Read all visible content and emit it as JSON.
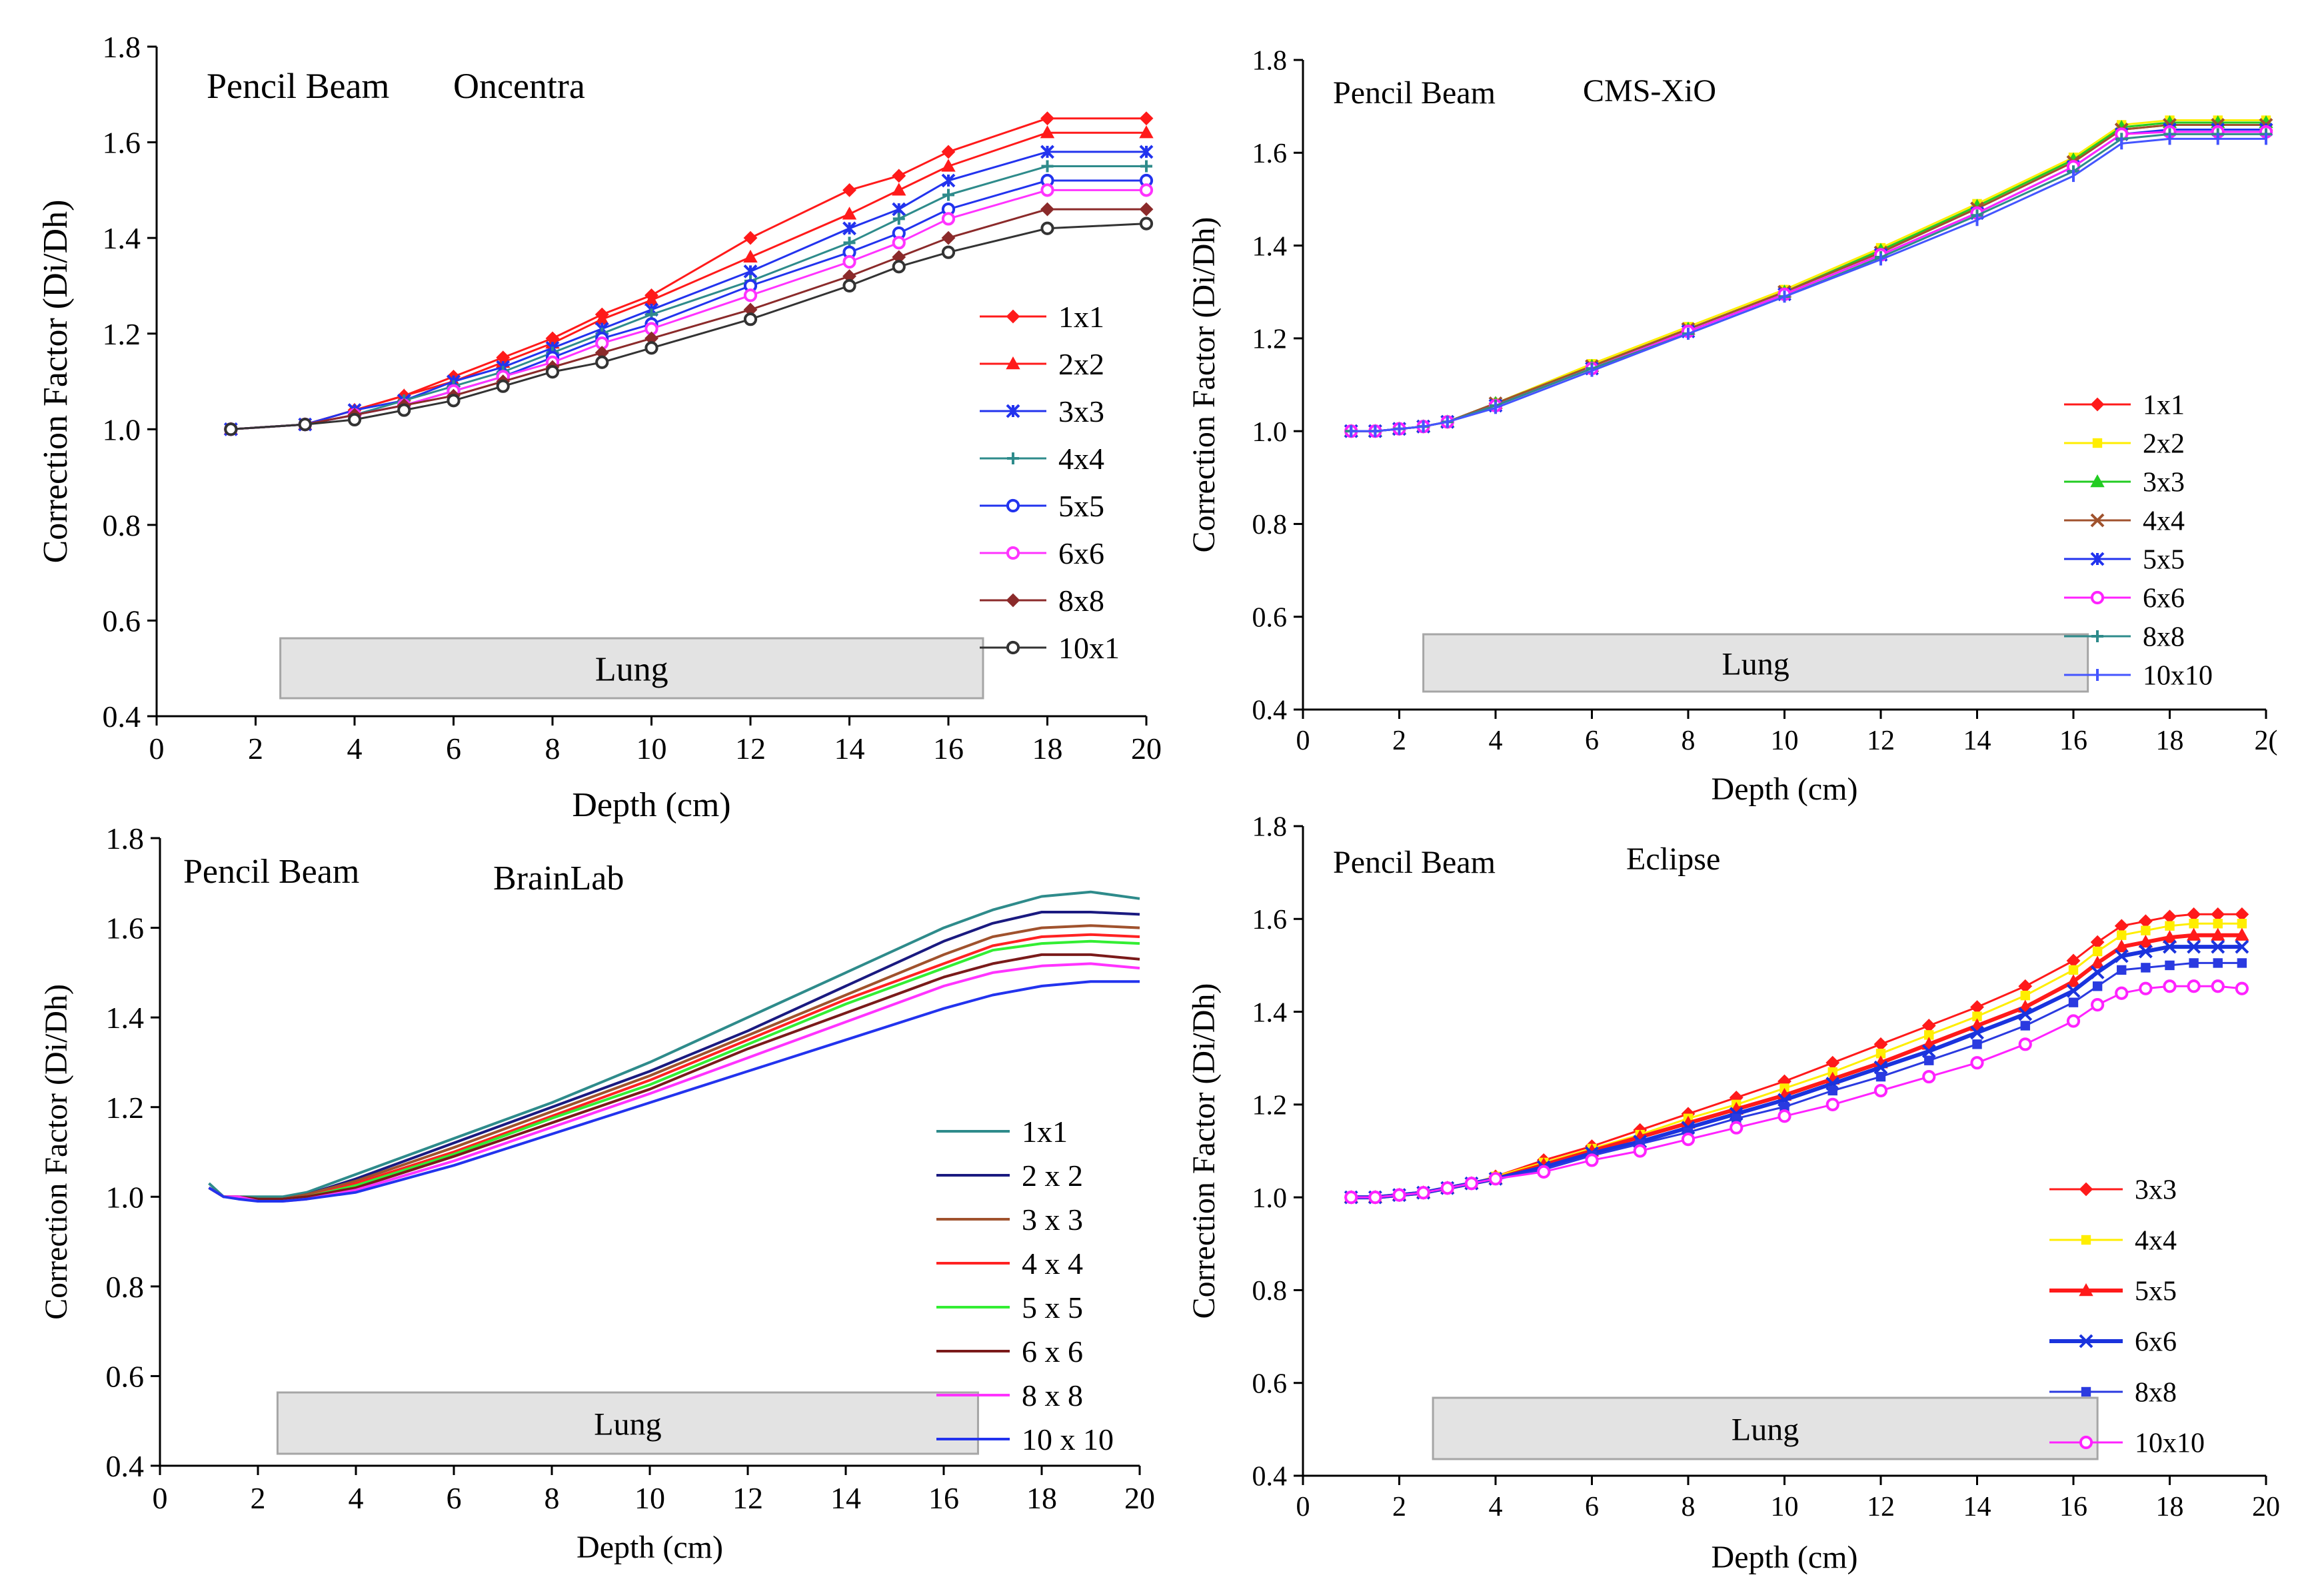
{
  "chart_data": [
    {
      "type": "line",
      "title": "Pencil Beam",
      "subtitle": "Oncentra",
      "xlabel": "Depth (cm)",
      "ylabel": "Correction Factor (Di/Dh)",
      "xlim": [
        0,
        20
      ],
      "ylim": [
        0.4,
        1.8
      ],
      "xticks": [
        "0",
        "2",
        "4",
        "6",
        "8",
        "10",
        "12",
        "14",
        "16",
        "18",
        "20"
      ],
      "yticks": [
        "0.4",
        "0.6",
        "0.8",
        "1.0",
        "1.2",
        "1.4",
        "1.6",
        "1.8"
      ],
      "region_label": "Lung",
      "region": [
        2.5,
        16.7
      ],
      "legend_position": "right",
      "x": [
        1.5,
        3,
        4,
        5,
        6,
        7,
        8,
        9,
        10,
        12,
        14,
        15,
        16,
        18,
        20
      ],
      "series": [
        {
          "name": "1x1",
          "color": "#ff1a1a",
          "marker": "diamond",
          "values": [
            1.0,
            1.01,
            1.04,
            1.07,
            1.11,
            1.15,
            1.19,
            1.24,
            1.28,
            1.4,
            1.5,
            1.53,
            1.58,
            1.65,
            1.65
          ]
        },
        {
          "name": "2x2",
          "color": "#ff1a1a",
          "marker": "triangle",
          "values": [
            1.0,
            1.01,
            1.04,
            1.07,
            1.1,
            1.14,
            1.18,
            1.23,
            1.27,
            1.36,
            1.45,
            1.5,
            1.55,
            1.62,
            1.62
          ]
        },
        {
          "name": "3x3",
          "color": "#2233ee",
          "marker": "star",
          "values": [
            1.0,
            1.01,
            1.04,
            1.06,
            1.1,
            1.13,
            1.17,
            1.21,
            1.25,
            1.33,
            1.42,
            1.46,
            1.52,
            1.58,
            1.58
          ]
        },
        {
          "name": "4x4",
          "color": "#2e8b8b",
          "marker": "plus",
          "values": [
            1.0,
            1.01,
            1.03,
            1.06,
            1.09,
            1.12,
            1.16,
            1.2,
            1.24,
            1.31,
            1.39,
            1.44,
            1.49,
            1.55,
            1.55
          ]
        },
        {
          "name": "5x5",
          "color": "#2233ee",
          "marker": "circle",
          "values": [
            1.0,
            1.01,
            1.03,
            1.05,
            1.08,
            1.11,
            1.15,
            1.19,
            1.22,
            1.3,
            1.37,
            1.41,
            1.46,
            1.52,
            1.52
          ]
        },
        {
          "name": "6x6",
          "color": "#ff33ff",
          "marker": "circle",
          "values": [
            1.0,
            1.01,
            1.03,
            1.05,
            1.08,
            1.11,
            1.14,
            1.18,
            1.21,
            1.28,
            1.35,
            1.39,
            1.44,
            1.5,
            1.5
          ]
        },
        {
          "name": "8x8",
          "color": "#8b2a2a",
          "marker": "diamond",
          "values": [
            1.0,
            1.01,
            1.03,
            1.05,
            1.07,
            1.1,
            1.13,
            1.16,
            1.19,
            1.25,
            1.32,
            1.36,
            1.4,
            1.46,
            1.46
          ]
        },
        {
          "name": "10x1",
          "color": "#333333",
          "marker": "circle",
          "values": [
            1.0,
            1.01,
            1.02,
            1.04,
            1.06,
            1.09,
            1.12,
            1.14,
            1.17,
            1.23,
            1.3,
            1.34,
            1.37,
            1.42,
            1.43
          ]
        }
      ]
    },
    {
      "type": "line",
      "title": "Pencil Beam",
      "subtitle": "CMS-XiO",
      "xlabel": "Depth (cm)",
      "ylabel": "Correction Factor (Di/Dh)",
      "xlim": [
        0,
        20
      ],
      "ylim": [
        0.4,
        1.8
      ],
      "xticks": [
        "0",
        "2",
        "4",
        "6",
        "8",
        "10",
        "12",
        "14",
        "16",
        "18",
        "2("
      ],
      "yticks": [
        "0.4",
        "0.6",
        "0.8",
        "1.0",
        "1.2",
        "1.4",
        "1.6",
        "1.8"
      ],
      "region_label": "Lung",
      "region": [
        2.5,
        16.3
      ],
      "legend_position": "right",
      "x": [
        1,
        1.5,
        2,
        2.5,
        3,
        4,
        6,
        8,
        10,
        12,
        14,
        16,
        17,
        18,
        19,
        20
      ],
      "series": [
        {
          "name": "1x1",
          "color": "#ff1a1a",
          "marker": "diamond",
          "values": [
            1.0,
            1.0,
            1.005,
            1.01,
            1.02,
            1.06,
            1.14,
            1.22,
            1.3,
            1.39,
            1.48,
            1.58,
            1.65,
            1.66,
            1.66,
            1.66
          ]
        },
        {
          "name": "2x2",
          "color": "#ffee00",
          "marker": "square",
          "values": [
            1.0,
            1.0,
            1.005,
            1.01,
            1.02,
            1.06,
            1.145,
            1.225,
            1.305,
            1.395,
            1.49,
            1.59,
            1.66,
            1.67,
            1.67,
            1.67
          ]
        },
        {
          "name": "3x3",
          "color": "#22cc22",
          "marker": "triangle",
          "values": [
            1.0,
            1.0,
            1.005,
            1.01,
            1.02,
            1.06,
            1.14,
            1.22,
            1.3,
            1.39,
            1.485,
            1.585,
            1.655,
            1.665,
            1.665,
            1.665
          ]
        },
        {
          "name": "4x4",
          "color": "#a0522d",
          "marker": "x",
          "values": [
            1.0,
            1.0,
            1.005,
            1.01,
            1.02,
            1.06,
            1.14,
            1.22,
            1.3,
            1.385,
            1.48,
            1.58,
            1.65,
            1.66,
            1.66,
            1.66
          ]
        },
        {
          "name": "5x5",
          "color": "#2233ee",
          "marker": "star",
          "values": [
            1.0,
            1.0,
            1.005,
            1.01,
            1.02,
            1.055,
            1.135,
            1.215,
            1.295,
            1.38,
            1.47,
            1.57,
            1.64,
            1.65,
            1.65,
            1.65
          ]
        },
        {
          "name": "6x6",
          "color": "#ff22ff",
          "marker": "circle",
          "values": [
            1.0,
            1.0,
            1.005,
            1.01,
            1.02,
            1.055,
            1.135,
            1.215,
            1.295,
            1.38,
            1.47,
            1.57,
            1.64,
            1.645,
            1.645,
            1.645
          ]
        },
        {
          "name": "8x8",
          "color": "#2e8b8b",
          "marker": "plus",
          "values": [
            1.0,
            1.0,
            1.005,
            1.01,
            1.02,
            1.055,
            1.135,
            1.21,
            1.29,
            1.375,
            1.465,
            1.56,
            1.63,
            1.64,
            1.64,
            1.64
          ]
        },
        {
          "name": "10x10",
          "color": "#4455ff",
          "marker": "bar",
          "values": [
            1.0,
            1.0,
            1.005,
            1.01,
            1.02,
            1.05,
            1.13,
            1.21,
            1.29,
            1.37,
            1.455,
            1.55,
            1.62,
            1.63,
            1.63,
            1.63
          ]
        }
      ]
    },
    {
      "type": "line",
      "title": "Pencil Beam",
      "subtitle": "BrainLab",
      "xlabel": "Depth (cm)",
      "ylabel": "Correction Factor (Di/Dh)",
      "xlim": [
        0,
        20
      ],
      "ylim": [
        0.4,
        1.8
      ],
      "xticks": [
        "0",
        "2",
        "4",
        "6",
        "8",
        "10",
        "12",
        "14",
        "16",
        "18",
        "20"
      ],
      "yticks": [
        "0.4",
        "0.6",
        "0.8",
        "1.0",
        "1.2",
        "1.4",
        "1.6",
        "1.8"
      ],
      "region_label": "Lung",
      "region": [
        2.4,
        16.7
      ],
      "legend_position": "right",
      "x": [
        1,
        1.3,
        1.6,
        2,
        2.5,
        3,
        4,
        6,
        8,
        10,
        12,
        14,
        16,
        17,
        18,
        19,
        20
      ],
      "series": [
        {
          "name": "1x1",
          "color": "#2e8b8b",
          "marker": "none",
          "values": [
            1.03,
            1.0,
            1.0,
            1.0,
            1.0,
            1.01,
            1.05,
            1.13,
            1.21,
            1.3,
            1.4,
            1.5,
            1.6,
            1.64,
            1.67,
            1.68,
            1.665
          ]
        },
        {
          "name": "2 x 2",
          "color": "#1a1a80",
          "marker": "none",
          "values": [
            1.02,
            1.0,
            1.0,
            0.995,
            0.995,
            1.005,
            1.04,
            1.12,
            1.2,
            1.28,
            1.37,
            1.47,
            1.57,
            1.61,
            1.635,
            1.635,
            1.63
          ]
        },
        {
          "name": "3 x 3",
          "color": "#a0522d",
          "marker": "none",
          "values": [
            1.02,
            1.0,
            1.0,
            0.995,
            0.995,
            1.005,
            1.035,
            1.11,
            1.19,
            1.27,
            1.36,
            1.45,
            1.54,
            1.58,
            1.6,
            1.605,
            1.6
          ]
        },
        {
          "name": "4 x 4",
          "color": "#ff2222",
          "marker": "none",
          "values": [
            1.02,
            1.0,
            1.0,
            0.995,
            0.995,
            1.0,
            1.03,
            1.1,
            1.18,
            1.26,
            1.35,
            1.44,
            1.52,
            1.56,
            1.58,
            1.585,
            1.58
          ]
        },
        {
          "name": "5 x 5",
          "color": "#33ee33",
          "marker": "none",
          "values": [
            1.02,
            1.0,
            1.0,
            0.995,
            0.995,
            1.0,
            1.025,
            1.095,
            1.175,
            1.25,
            1.34,
            1.43,
            1.51,
            1.55,
            1.565,
            1.57,
            1.565
          ]
        },
        {
          "name": "6 x 6",
          "color": "#7a1a1a",
          "marker": "none",
          "values": [
            1.02,
            1.0,
            1.0,
            0.995,
            0.995,
            1.0,
            1.02,
            1.09,
            1.165,
            1.24,
            1.33,
            1.41,
            1.49,
            1.52,
            1.54,
            1.54,
            1.53
          ]
        },
        {
          "name": "8 x 8",
          "color": "#ff33ff",
          "marker": "none",
          "values": [
            1.02,
            1.0,
            1.0,
            0.99,
            0.99,
            0.995,
            1.015,
            1.08,
            1.155,
            1.23,
            1.31,
            1.39,
            1.47,
            1.5,
            1.515,
            1.52,
            1.51
          ]
        },
        {
          "name": "10 x 10",
          "color": "#2233ee",
          "marker": "none",
          "values": [
            1.02,
            1.0,
            0.995,
            0.99,
            0.99,
            0.995,
            1.01,
            1.07,
            1.14,
            1.21,
            1.28,
            1.35,
            1.42,
            1.45,
            1.47,
            1.48,
            1.48
          ]
        }
      ]
    },
    {
      "type": "line",
      "title": "Pencil Beam",
      "subtitle": "Eclipse",
      "xlabel": "Depth (cm)",
      "ylabel": "Correction Factor (Di/Dh)",
      "xlim": [
        0,
        20
      ],
      "ylim": [
        0.4,
        1.8
      ],
      "xticks": [
        "0",
        "2",
        "4",
        "6",
        "8",
        "10",
        "12",
        "14",
        "16",
        "18",
        "20"
      ],
      "yticks": [
        "0.4",
        "0.6",
        "0.8",
        "1.0",
        "1.2",
        "1.4",
        "1.6",
        "1.8"
      ],
      "region_label": "Lung",
      "region": [
        2.7,
        16.5
      ],
      "legend_position": "right",
      "x": [
        1,
        1.5,
        2,
        2.5,
        3,
        3.5,
        4,
        5,
        6,
        7,
        8,
        9,
        10,
        11,
        12,
        13,
        14,
        15,
        16,
        16.5,
        17,
        17.5,
        18,
        18.5,
        19,
        19.5
      ],
      "series": [
        {
          "name": "3x3",
          "color": "#ff1a1a",
          "marker": "diamond",
          "lw": 3,
          "values": [
            1.0,
            1.0,
            1.005,
            1.01,
            1.02,
            1.03,
            1.045,
            1.08,
            1.11,
            1.145,
            1.18,
            1.215,
            1.25,
            1.29,
            1.33,
            1.37,
            1.41,
            1.455,
            1.51,
            1.55,
            1.585,
            1.595,
            1.605,
            1.61,
            1.61,
            1.61
          ]
        },
        {
          "name": "4x4",
          "color": "#ffee00",
          "marker": "square",
          "lw": 3,
          "values": [
            1.0,
            1.0,
            1.005,
            1.01,
            1.02,
            1.03,
            1.045,
            1.075,
            1.105,
            1.135,
            1.17,
            1.2,
            1.235,
            1.27,
            1.31,
            1.35,
            1.39,
            1.435,
            1.49,
            1.53,
            1.565,
            1.575,
            1.585,
            1.59,
            1.59,
            1.59
          ]
        },
        {
          "name": "5x5",
          "color": "#ff1a1a",
          "marker": "triangle",
          "lw": 6,
          "values": [
            1.0,
            1.0,
            1.005,
            1.01,
            1.02,
            1.03,
            1.04,
            1.07,
            1.1,
            1.13,
            1.16,
            1.19,
            1.22,
            1.255,
            1.29,
            1.33,
            1.37,
            1.41,
            1.465,
            1.505,
            1.54,
            1.55,
            1.56,
            1.565,
            1.565,
            1.565
          ]
        },
        {
          "name": "6x6",
          "color": "#1a33dd",
          "marker": "x",
          "lw": 6,
          "values": [
            1.0,
            1.0,
            1.005,
            1.01,
            1.02,
            1.03,
            1.04,
            1.065,
            1.095,
            1.12,
            1.15,
            1.18,
            1.21,
            1.245,
            1.28,
            1.315,
            1.355,
            1.395,
            1.445,
            1.485,
            1.52,
            1.53,
            1.54,
            1.54,
            1.54,
            1.54
          ]
        },
        {
          "name": "8x8",
          "color": "#2a3ae0",
          "marker": "square",
          "lw": 3,
          "values": [
            1.0,
            1.0,
            1.005,
            1.01,
            1.02,
            1.03,
            1.04,
            1.06,
            1.09,
            1.115,
            1.14,
            1.17,
            1.195,
            1.23,
            1.26,
            1.295,
            1.33,
            1.37,
            1.42,
            1.455,
            1.49,
            1.495,
            1.5,
            1.505,
            1.505,
            1.505
          ]
        },
        {
          "name": "10x10",
          "color": "#ff22ff",
          "marker": "circle",
          "lw": 3,
          "values": [
            1.0,
            1.0,
            1.005,
            1.01,
            1.02,
            1.03,
            1.04,
            1.055,
            1.08,
            1.1,
            1.125,
            1.15,
            1.175,
            1.2,
            1.23,
            1.26,
            1.29,
            1.33,
            1.38,
            1.415,
            1.44,
            1.45,
            1.455,
            1.455,
            1.455,
            1.45
          ]
        }
      ]
    }
  ]
}
